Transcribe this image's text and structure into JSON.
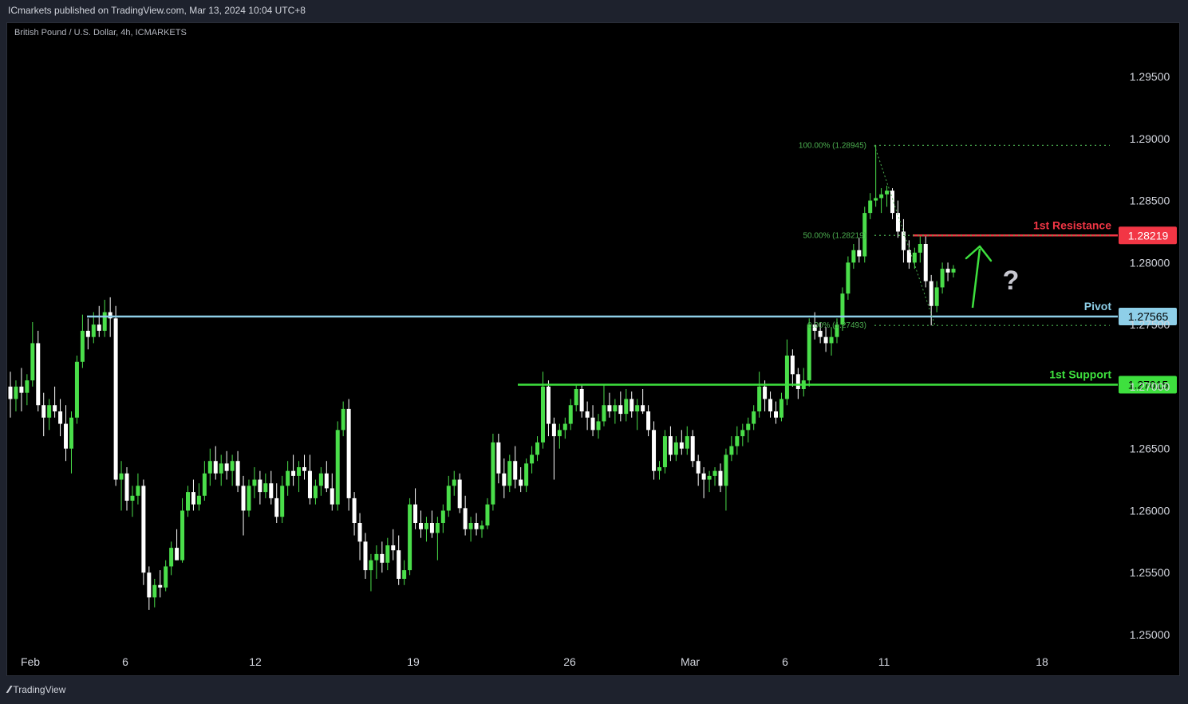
{
  "header": {
    "published_by": "ICmarkets published on TradingView.com, Mar 13, 2024 10:04 UTC+8"
  },
  "footer": {
    "logo_text": "TradingView",
    "logo_icon": "tradingview-logo-icon"
  },
  "colors": {
    "background": "#000000",
    "frame": "#1e222d",
    "bull": "#4ade4a",
    "bear": "#ffffff",
    "pivot": "#8ecfe8",
    "support": "#3ee03e",
    "resistance": "#f23645",
    "fib": "#4caf50",
    "axis_text": "#d1d4dc"
  },
  "chart_data": {
    "type": "candlestick",
    "title": "British Pound / U.S. Dollar, 4h, ICMARKETS",
    "y_ticks": [
      "1.29500",
      "1.29000",
      "1.28500",
      "1.28000",
      "1.27500",
      "1.27000",
      "1.26500",
      "1.26000",
      "1.25500",
      "1.25000"
    ],
    "ylim": [
      1.2465,
      1.3005
    ],
    "x_ticks": [
      "Feb",
      "6",
      "12",
      "19",
      "26",
      "Mar",
      "6",
      "11",
      "18"
    ],
    "levels": [
      {
        "name": "1st Resistance",
        "value": 1.28219,
        "tag": "1.28219",
        "role": "resistance"
      },
      {
        "name": "Pivot",
        "value": 1.27565,
        "tag": "1.27565",
        "role": "pivot"
      },
      {
        "name": "1st Support",
        "value": 1.27015,
        "tag": "1.27015",
        "role": "support"
      }
    ],
    "fibonacci": [
      {
        "label": "100.00% (1.28945)",
        "value": 1.28945
      },
      {
        "label": "50.00% (1.28219)",
        "value": 1.28219
      },
      {
        "label": "0.00% (1.27493)",
        "value": 1.27493
      }
    ],
    "annotations": {
      "arrow": "up",
      "question_mark": "?"
    },
    "candles": [
      [
        1.27,
        1.2712,
        1.2675,
        1.269
      ],
      [
        1.269,
        1.2705,
        1.268,
        1.27
      ],
      [
        1.27,
        1.2715,
        1.268,
        1.2695
      ],
      [
        1.2695,
        1.271,
        1.2685,
        1.2705
      ],
      [
        1.2705,
        1.2752,
        1.27,
        1.2735
      ],
      [
        1.2735,
        1.2745,
        1.268,
        1.2685
      ],
      [
        1.2685,
        1.2695,
        1.266,
        1.2675
      ],
      [
        1.2675,
        1.269,
        1.2665,
        1.2685
      ],
      [
        1.2685,
        1.27,
        1.2675,
        1.268
      ],
      [
        1.268,
        1.269,
        1.266,
        1.267
      ],
      [
        1.267,
        1.2685,
        1.264,
        1.265
      ],
      [
        1.265,
        1.268,
        1.263,
        1.2675
      ],
      [
        1.2675,
        1.2725,
        1.267,
        1.272
      ],
      [
        1.272,
        1.2758,
        1.2715,
        1.2745
      ],
      [
        1.2745,
        1.2755,
        1.273,
        1.274
      ],
      [
        1.274,
        1.276,
        1.2735,
        1.275
      ],
      [
        1.275,
        1.2765,
        1.274,
        1.2745
      ],
      [
        1.2745,
        1.277,
        1.274,
        1.276
      ],
      [
        1.276,
        1.2772,
        1.274,
        1.2755
      ],
      [
        1.2755,
        1.2765,
        1.262,
        1.2625
      ],
      [
        1.2625,
        1.264,
        1.26,
        1.263
      ],
      [
        1.263,
        1.2635,
        1.26,
        1.2608
      ],
      [
        1.2608,
        1.262,
        1.2595,
        1.2612
      ],
      [
        1.2612,
        1.263,
        1.2605,
        1.262
      ],
      [
        1.262,
        1.2625,
        1.254,
        1.255
      ],
      [
        1.255,
        1.2555,
        1.252,
        1.253
      ],
      [
        1.253,
        1.2545,
        1.2522,
        1.254
      ],
      [
        1.254,
        1.2552,
        1.253,
        1.2538
      ],
      [
        1.2538,
        1.256,
        1.2535,
        1.2555
      ],
      [
        1.2555,
        1.2575,
        1.2548,
        1.257
      ],
      [
        1.257,
        1.2585,
        1.256,
        1.256
      ],
      [
        1.256,
        1.261,
        1.2558,
        1.26
      ],
      [
        1.26,
        1.262,
        1.2595,
        1.2615
      ],
      [
        1.2615,
        1.2625,
        1.26,
        1.2605
      ],
      [
        1.2605,
        1.2622,
        1.26,
        1.2612
      ],
      [
        1.2612,
        1.264,
        1.2608,
        1.263
      ],
      [
        1.263,
        1.265,
        1.262,
        1.264
      ],
      [
        1.264,
        1.2652,
        1.2625,
        1.263
      ],
      [
        1.263,
        1.2645,
        1.262,
        1.2638
      ],
      [
        1.2638,
        1.2648,
        1.2625,
        1.2632
      ],
      [
        1.2632,
        1.2645,
        1.262,
        1.264
      ],
      [
        1.264,
        1.2648,
        1.2615,
        1.262
      ],
      [
        1.262,
        1.2628,
        1.258,
        1.26
      ],
      [
        1.26,
        1.2625,
        1.2595,
        1.262
      ],
      [
        1.262,
        1.2635,
        1.261,
        1.2625
      ],
      [
        1.2625,
        1.2632,
        1.2605,
        1.2615
      ],
      [
        1.2615,
        1.263,
        1.261,
        1.2622
      ],
      [
        1.2622,
        1.2632,
        1.2605,
        1.261
      ],
      [
        1.261,
        1.2622,
        1.259,
        1.2595
      ],
      [
        1.2595,
        1.2628,
        1.259,
        1.262
      ],
      [
        1.262,
        1.264,
        1.2612,
        1.2632
      ],
      [
        1.2632,
        1.2645,
        1.262,
        1.2628
      ],
      [
        1.2628,
        1.264,
        1.2615,
        1.2635
      ],
      [
        1.2635,
        1.2645,
        1.2625,
        1.2632
      ],
      [
        1.2632,
        1.2645,
        1.2605,
        1.261
      ],
      [
        1.261,
        1.2625,
        1.2605,
        1.262
      ],
      [
        1.262,
        1.2635,
        1.2612,
        1.263
      ],
      [
        1.263,
        1.264,
        1.2615,
        1.2618
      ],
      [
        1.2618,
        1.263,
        1.26,
        1.2605
      ],
      [
        1.2605,
        1.2672,
        1.26,
        1.2665
      ],
      [
        1.2665,
        1.2688,
        1.266,
        1.2682
      ],
      [
        1.2682,
        1.269,
        1.26,
        1.261
      ],
      [
        1.261,
        1.2615,
        1.258,
        1.259
      ],
      [
        1.259,
        1.2598,
        1.256,
        1.2575
      ],
      [
        1.2575,
        1.2582,
        1.2545,
        1.2552
      ],
      [
        1.2552,
        1.2565,
        1.2535,
        1.256
      ],
      [
        1.256,
        1.2572,
        1.2545,
        1.2565
      ],
      [
        1.2565,
        1.2575,
        1.255,
        1.2558
      ],
      [
        1.2558,
        1.2578,
        1.2552,
        1.2572
      ],
      [
        1.2572,
        1.2585,
        1.256,
        1.2568
      ],
      [
        1.2568,
        1.258,
        1.254,
        1.2545
      ],
      [
        1.2545,
        1.256,
        1.254,
        1.2552
      ],
      [
        1.2552,
        1.261,
        1.2548,
        1.2605
      ],
      [
        1.2605,
        1.2618,
        1.2585,
        1.259
      ],
      [
        1.259,
        1.26,
        1.2578,
        1.2585
      ],
      [
        1.2585,
        1.2595,
        1.2575,
        1.259
      ],
      [
        1.259,
        1.26,
        1.2578,
        1.2582
      ],
      [
        1.2582,
        1.2595,
        1.256,
        1.259
      ],
      [
        1.259,
        1.2605,
        1.2582,
        1.26
      ],
      [
        1.26,
        1.2628,
        1.2595,
        1.262
      ],
      [
        1.262,
        1.2632,
        1.2612,
        1.2625
      ],
      [
        1.2625,
        1.263,
        1.2598,
        1.2602
      ],
      [
        1.2602,
        1.2612,
        1.258,
        1.2585
      ],
      [
        1.2585,
        1.2595,
        1.2575,
        1.259
      ],
      [
        1.259,
        1.2598,
        1.258,
        1.2585
      ],
      [
        1.2585,
        1.2592,
        1.2578,
        1.2588
      ],
      [
        1.2588,
        1.261,
        1.2585,
        1.2605
      ],
      [
        1.2605,
        1.2662,
        1.26,
        1.2655
      ],
      [
        1.2655,
        1.2662,
        1.2622,
        1.263
      ],
      [
        1.263,
        1.2642,
        1.261,
        1.262
      ],
      [
        1.262,
        1.2645,
        1.2615,
        1.264
      ],
      [
        1.264,
        1.2652,
        1.2618,
        1.2625
      ],
      [
        1.2625,
        1.2635,
        1.2615,
        1.262
      ],
      [
        1.262,
        1.2642,
        1.2615,
        1.2638
      ],
      [
        1.2638,
        1.2652,
        1.263,
        1.2645
      ],
      [
        1.2645,
        1.266,
        1.264,
        1.2655
      ],
      [
        1.2655,
        1.2712,
        1.265,
        1.27
      ],
      [
        1.27,
        1.2705,
        1.266,
        1.267
      ],
      [
        1.267,
        1.2675,
        1.2625,
        1.266
      ],
      [
        1.266,
        1.267,
        1.265,
        1.2665
      ],
      [
        1.2665,
        1.2675,
        1.2658,
        1.267
      ],
      [
        1.267,
        1.269,
        1.2665,
        1.2685
      ],
      [
        1.2685,
        1.2702,
        1.268,
        1.2698
      ],
      [
        1.2698,
        1.2702,
        1.2675,
        1.268
      ],
      [
        1.268,
        1.2688,
        1.2665,
        1.2675
      ],
      [
        1.2675,
        1.2685,
        1.266,
        1.2665
      ],
      [
        1.2665,
        1.2678,
        1.2658,
        1.2672
      ],
      [
        1.2672,
        1.2702,
        1.2668,
        1.2685
      ],
      [
        1.2685,
        1.2695,
        1.2675,
        1.268
      ],
      [
        1.268,
        1.269,
        1.267,
        1.2685
      ],
      [
        1.2685,
        1.2696,
        1.2672,
        1.2678
      ],
      [
        1.2678,
        1.2698,
        1.2672,
        1.269
      ],
      [
        1.269,
        1.2696,
        1.2675,
        1.268
      ],
      [
        1.268,
        1.269,
        1.2665,
        1.2685
      ],
      [
        1.2685,
        1.2698,
        1.2678,
        1.268
      ],
      [
        1.268,
        1.2685,
        1.266,
        1.2665
      ],
      [
        1.2665,
        1.2672,
        1.2625,
        1.2632
      ],
      [
        1.2632,
        1.264,
        1.2625,
        1.2635
      ],
      [
        1.2635,
        1.2665,
        1.263,
        1.266
      ],
      [
        1.266,
        1.2668,
        1.264,
        1.2645
      ],
      [
        1.2645,
        1.266,
        1.264,
        1.2655
      ],
      [
        1.2655,
        1.2665,
        1.2645,
        1.265
      ],
      [
        1.265,
        1.2668,
        1.2645,
        1.266
      ],
      [
        1.266,
        1.2665,
        1.2635,
        1.264
      ],
      [
        1.264,
        1.2645,
        1.262,
        1.263
      ],
      [
        1.263,
        1.2635,
        1.261,
        1.2625
      ],
      [
        1.2625,
        1.2632,
        1.2615,
        1.2628
      ],
      [
        1.2628,
        1.2635,
        1.262,
        1.2632
      ],
      [
        1.2632,
        1.2638,
        1.2615,
        1.262
      ],
      [
        1.262,
        1.265,
        1.26,
        1.2645
      ],
      [
        1.2645,
        1.266,
        1.264,
        1.2652
      ],
      [
        1.2652,
        1.2668,
        1.2645,
        1.266
      ],
      [
        1.266,
        1.267,
        1.2652,
        1.2665
      ],
      [
        1.2665,
        1.2675,
        1.2655,
        1.267
      ],
      [
        1.267,
        1.2685,
        1.2665,
        1.268
      ],
      [
        1.268,
        1.2712,
        1.2675,
        1.27
      ],
      [
        1.27,
        1.2705,
        1.268,
        1.269
      ],
      [
        1.269,
        1.2696,
        1.2675,
        1.268
      ],
      [
        1.268,
        1.2688,
        1.267,
        1.2675
      ],
      [
        1.2675,
        1.2695,
        1.2672,
        1.269
      ],
      [
        1.269,
        1.2738,
        1.2685,
        1.2725
      ],
      [
        1.2725,
        1.273,
        1.27,
        1.271
      ],
      [
        1.271,
        1.2715,
        1.269,
        1.2698
      ],
      [
        1.2698,
        1.2715,
        1.2692,
        1.2705
      ],
      [
        1.2705,
        1.2755,
        1.27,
        1.275
      ],
      [
        1.275,
        1.276,
        1.2738,
        1.2745
      ],
      [
        1.2745,
        1.2752,
        1.2735,
        1.274
      ],
      [
        1.274,
        1.2748,
        1.2728,
        1.2735
      ],
      [
        1.2735,
        1.2748,
        1.2725,
        1.274
      ],
      [
        1.274,
        1.2755,
        1.2735,
        1.275
      ],
      [
        1.275,
        1.278,
        1.2745,
        1.2775
      ],
      [
        1.2775,
        1.2805,
        1.277,
        1.28
      ],
      [
        1.28,
        1.2815,
        1.2795,
        1.281
      ],
      [
        1.281,
        1.282,
        1.28,
        1.2805
      ],
      [
        1.2805,
        1.2845,
        1.28,
        1.284
      ],
      [
        1.284,
        1.2856,
        1.2835,
        1.285
      ],
      [
        1.285,
        1.28945,
        1.2845,
        1.2852
      ],
      [
        1.2852,
        1.286,
        1.284,
        1.2855
      ],
      [
        1.2855,
        1.2862,
        1.2845,
        1.2858
      ],
      [
        1.2858,
        1.286,
        1.2835,
        1.284
      ],
      [
        1.284,
        1.285,
        1.282,
        1.2825
      ],
      [
        1.2825,
        1.2835,
        1.28,
        1.281
      ],
      [
        1.281,
        1.2818,
        1.2795,
        1.28
      ],
      [
        1.28,
        1.2812,
        1.2795,
        1.2808
      ],
      [
        1.2808,
        1.2822,
        1.28,
        1.2815
      ],
      [
        1.2815,
        1.2822,
        1.278,
        1.2785
      ],
      [
        1.2785,
        1.279,
        1.27493,
        1.2765
      ],
      [
        1.2765,
        1.2785,
        1.276,
        1.278
      ],
      [
        1.278,
        1.28,
        1.2775,
        1.2795
      ],
      [
        1.2795,
        1.28,
        1.2785,
        1.2792
      ],
      [
        1.2792,
        1.2798,
        1.2788,
        1.2795
      ]
    ]
  }
}
